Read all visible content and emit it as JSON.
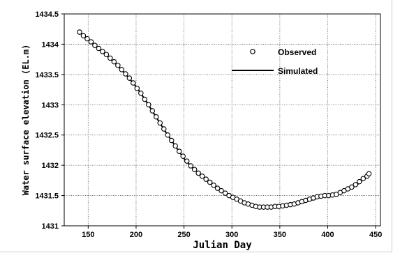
{
  "chart_data": {
    "type": "scatter",
    "title": "",
    "xlabel": "Julian Day",
    "ylabel": "Water surface elevation (EL.m)",
    "xlim": [
      125,
      455
    ],
    "ylim": [
      1431,
      1434.5
    ],
    "x_ticks": [
      150,
      200,
      250,
      300,
      350,
      400,
      450
    ],
    "x_tick_labels": [
      "150",
      "200",
      "250",
      "300",
      "350",
      "400",
      "450"
    ],
    "y_ticks": [
      1431,
      1431.5,
      1432,
      1432.5,
      1433,
      1433.5,
      1434,
      1434.5
    ],
    "y_tick_labels": [
      "1431",
      "1431.5",
      "1432",
      "1432.5",
      "1433",
      "1433.5",
      "1434",
      "1434.5"
    ],
    "grid": true,
    "legend_position": "top-right",
    "series": [
      {
        "name": "Observed",
        "style": "markers",
        "marker": "open-circle",
        "x": [
          141,
          145,
          149,
          153,
          157,
          161,
          165,
          169,
          173,
          177,
          181,
          185,
          189,
          193,
          197,
          201,
          205,
          209,
          213,
          217,
          221,
          225,
          229,
          233,
          237,
          241,
          245,
          249,
          253,
          257,
          261,
          265,
          269,
          273,
          277,
          281,
          285,
          289,
          293,
          297,
          301,
          305,
          309,
          313,
          317,
          321,
          325,
          329,
          333,
          337,
          341,
          345,
          349,
          353,
          357,
          361,
          365,
          369,
          373,
          377,
          381,
          385,
          389,
          393,
          397,
          401,
          405,
          409,
          413,
          417,
          421,
          425,
          429,
          433,
          437,
          441,
          443
        ],
        "y": [
          1434.2,
          1434.14,
          1434.09,
          1434.04,
          1433.98,
          1433.93,
          1433.88,
          1433.83,
          1433.77,
          1433.71,
          1433.65,
          1433.58,
          1433.51,
          1433.44,
          1433.36,
          1433.27,
          1433.19,
          1433.09,
          1433,
          1432.9,
          1432.8,
          1432.7,
          1432.6,
          1432.5,
          1432.41,
          1432.32,
          1432.23,
          1432.15,
          1432.07,
          1431.99,
          1431.93,
          1431.87,
          1431.82,
          1431.77,
          1431.72,
          1431.67,
          1431.62,
          1431.58,
          1431.54,
          1431.5,
          1431.47,
          1431.44,
          1431.41,
          1431.38,
          1431.36,
          1431.34,
          1431.32,
          1431.31,
          1431.31,
          1431.31,
          1431.31,
          1431.32,
          1431.32,
          1431.33,
          1431.34,
          1431.35,
          1431.36,
          1431.38,
          1431.4,
          1431.42,
          1431.44,
          1431.46,
          1431.48,
          1431.49,
          1431.5,
          1431.5,
          1431.51,
          1431.52,
          1431.55,
          1431.58,
          1431.61,
          1431.64,
          1431.68,
          1431.73,
          1431.78,
          1431.82,
          1431.86
        ]
      },
      {
        "name": "Simulated",
        "style": "line",
        "color": "#000000",
        "x": [
          141,
          150,
          160,
          170,
          180,
          190,
          200,
          210,
          220,
          230,
          240,
          250,
          260,
          270,
          280,
          290,
          300,
          310,
          320,
          330,
          340,
          350,
          360,
          370,
          380,
          390,
          400,
          410,
          420,
          430,
          440,
          443
        ],
        "y": [
          1434.2,
          1434.08,
          1433.94,
          1433.8,
          1433.66,
          1433.49,
          1433.3,
          1433.07,
          1432.82,
          1432.57,
          1432.34,
          1432.11,
          1431.94,
          1431.81,
          1431.69,
          1431.57,
          1431.48,
          1431.41,
          1431.36,
          1431.32,
          1431.3,
          1431.31,
          1431.33,
          1431.36,
          1431.41,
          1431.46,
          1431.49,
          1431.52,
          1431.59,
          1431.67,
          1431.8,
          1431.85
        ]
      }
    ]
  }
}
